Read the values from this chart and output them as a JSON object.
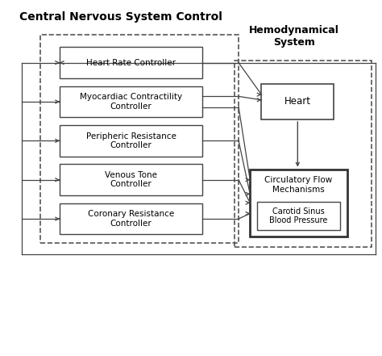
{
  "title_cns": "Central Nervous System Control",
  "title_hemo": "Hemodynamical\nSystem",
  "controllers": [
    "Heart Rate Controller",
    "Myocardiac Contractility\nController",
    "Peripheric Resistance\nController",
    "Venous Tone\nController",
    "Coronary Resistance\nController"
  ],
  "heart_label": "Heart",
  "circ_label": "Circulatory Flow\nMechanisms",
  "carotid_label": "Carotid Sinus\nBlood Pressure",
  "fig_w": 4.74,
  "fig_h": 4.41,
  "dpi": 100
}
